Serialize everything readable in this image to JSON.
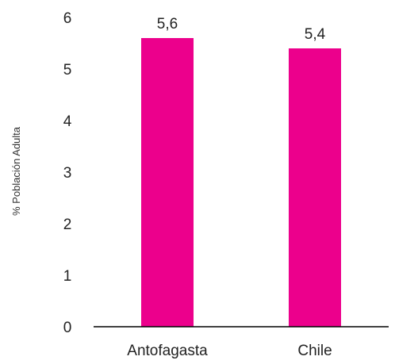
{
  "chart_data": {
    "type": "bar",
    "categories": [
      "Antofagasta",
      "Chile"
    ],
    "values": [
      5.6,
      5.4
    ],
    "value_labels": [
      "5,6",
      "5,4"
    ],
    "title": "",
    "xlabel": "",
    "ylabel": "% Población Adulta",
    "ylim": [
      0,
      6
    ],
    "yticks": [
      0,
      1,
      2,
      3,
      4,
      5,
      6
    ],
    "grid": false,
    "legend": "none",
    "bar_color": "#ec008c",
    "axis_color": "#000000"
  }
}
